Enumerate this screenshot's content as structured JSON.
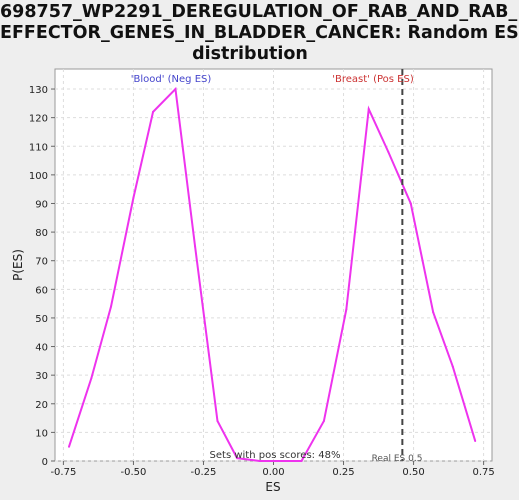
{
  "title_lines": [
    "698757_WP2291_DEREGULATION_OF_RAB_AND_RAB_",
    "EFFECTOR_GENES_IN_BLADDER_CANCER: Random ES",
    "distribution"
  ],
  "colors": {
    "background": "#eeeeee",
    "plot_bg": "#ffffff",
    "series": "#ee33ee",
    "neg_label": "#4444cc",
    "pos_label": "#cc3333",
    "grid": "#dddddd"
  },
  "chart_data": {
    "type": "line",
    "xlabel": "ES",
    "ylabel": "P(ES)",
    "xlim": [
      -0.78,
      0.78
    ],
    "ylim": [
      0,
      137
    ],
    "xticks": [
      -0.75,
      -0.5,
      -0.25,
      0.0,
      0.25,
      0.5,
      0.75
    ],
    "xtick_labels": [
      "-0.75",
      "-0.50",
      "-0.25",
      "0.00",
      "0.25",
      "0.50",
      "0.75"
    ],
    "yticks": [
      0,
      10,
      20,
      30,
      40,
      50,
      60,
      70,
      80,
      90,
      100,
      110,
      120,
      130
    ],
    "grid": true,
    "series": [
      {
        "x": [
          -0.73,
          -0.65,
          -0.58,
          -0.5,
          -0.43,
          -0.35,
          -0.28,
          -0.2,
          -0.13,
          -0.05,
          0.03,
          0.1,
          0.18,
          0.26,
          0.34,
          0.41,
          0.49,
          0.57,
          0.64,
          0.72
        ],
        "y": [
          5,
          29,
          54,
          92,
          122,
          130,
          75,
          14,
          1,
          0,
          0,
          0,
          14,
          53,
          123,
          108,
          90,
          52,
          33,
          7
        ]
      }
    ],
    "annotations": {
      "neg_label": "'Blood' (Neg ES)",
      "pos_label": "'Breast' (Pos ES)",
      "pos_scores": "Sets with pos scores: 48%",
      "real_es_label": "Real ES 0.5",
      "real_es": 0.46
    }
  }
}
